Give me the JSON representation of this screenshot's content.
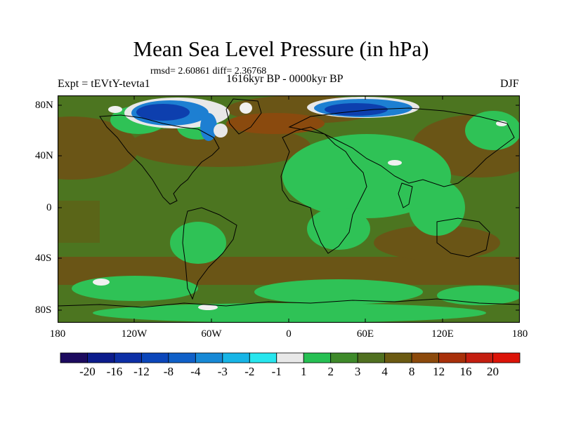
{
  "header": {
    "title": "Mean Sea Level Pressure (in hPa)",
    "stats": "rmsd= 2.60861  diff= 2.36768",
    "experiment": "Expt = tEVtY-tevta1",
    "period": "1616kyr BP - 0000kyr BP",
    "season": "DJF"
  },
  "axes": {
    "y_ticks": [
      "80N",
      "40N",
      "0",
      "40S",
      "80S"
    ],
    "x_ticks": [
      "180",
      "120W",
      "60W",
      "0",
      "60E",
      "120E",
      "180"
    ]
  },
  "colorbar": {
    "labels": [
      "-20",
      "-16",
      "-12",
      "-8",
      "-4",
      "-3",
      "-2",
      "-1",
      "1",
      "2",
      "3",
      "4",
      "8",
      "12",
      "16",
      "20"
    ],
    "colors": [
      "#1c0a5e",
      "#0c1c8c",
      "#0d2fa6",
      "#0b46ba",
      "#1060c8",
      "#1789d6",
      "#17b5e6",
      "#27e6ee",
      "#e8e8e8",
      "#26c053",
      "#3e8a2a",
      "#507020",
      "#6b5a12",
      "#8c4a0c",
      "#a8300a",
      "#c41e10",
      "#dc1408"
    ]
  },
  "map": {
    "background_color": "#4c7520",
    "palette": {
      "ocean_brown": "#6a5516",
      "green_light": "#2fc256",
      "green_mid": "#3e8a2a",
      "blue_dark": "#0d3fae",
      "blue_mid": "#1d7fd2",
      "white": "#f0f0f0",
      "red_brown": "#8a4a0e"
    }
  }
}
